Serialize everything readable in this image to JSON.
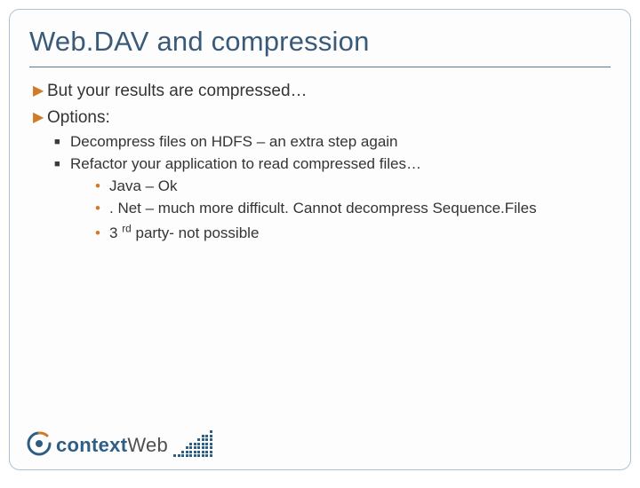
{
  "title": "Web.DAV and compression",
  "colors": {
    "title_text": "#3a5a7a",
    "body_text": "#343434",
    "accent_bullet": "#d07a2a",
    "border": "#a9c3d9",
    "hr": "#5a7a99",
    "logo_primary": "#2f5e84",
    "logo_secondary": "#4f4f4f",
    "background": "#fdfdfd"
  },
  "typography": {
    "title_fontsize": 31,
    "lvl1_fontsize": 19,
    "lvl2_fontsize": 17,
    "lvl3_fontsize": 17,
    "font_family": "Arial"
  },
  "bullets": {
    "lvl1": [
      "But your results are compressed…",
      "Options:"
    ],
    "lvl2": [
      "Decompress files on HDFS – an extra step again",
      "Refactor your application to read compressed files…"
    ],
    "lvl3": [
      "Java – Ok",
      ". Net – much more difficult. Cannot decompress Sequence.Files",
      "3 rd party- not possible"
    ]
  },
  "logo": {
    "text1": "context",
    "text2": "Web"
  }
}
